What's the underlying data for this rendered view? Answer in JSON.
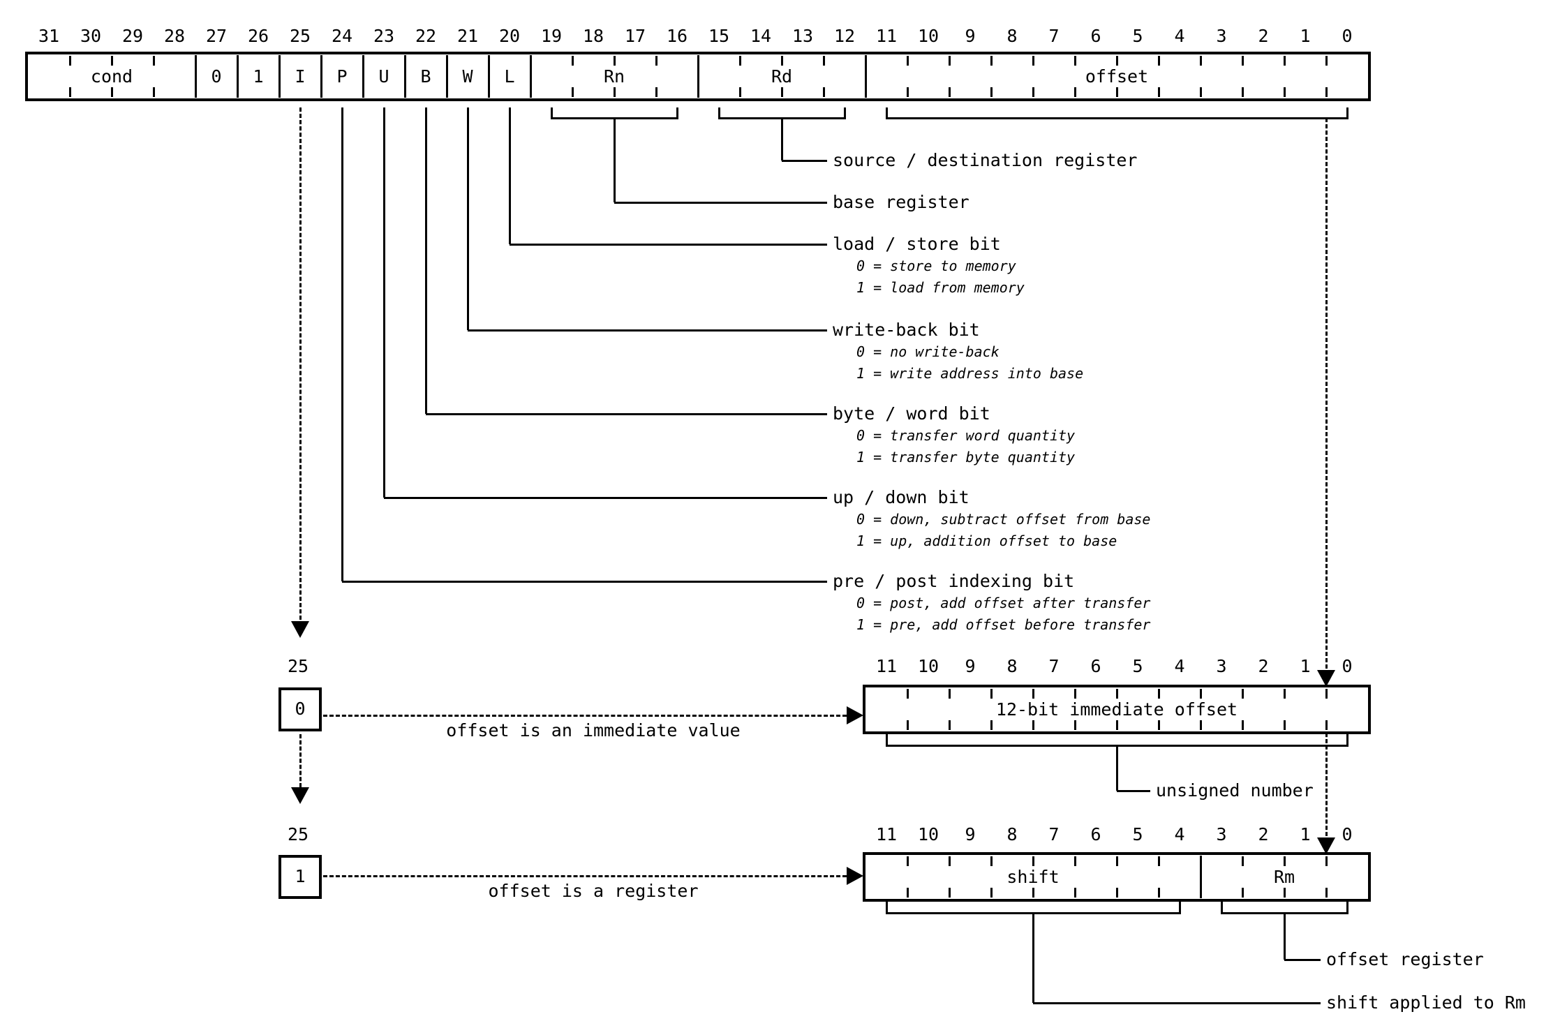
{
  "colors": {
    "ink": "#000000",
    "background": "#ffffff"
  },
  "diagram": {
    "top_register": {
      "bit_labels": [
        "31",
        "30",
        "29",
        "28",
        "27",
        "26",
        "25",
        "24",
        "23",
        "22",
        "21",
        "20",
        "19",
        "18",
        "17",
        "16",
        "15",
        "14",
        "13",
        "12",
        "11",
        "10",
        "9",
        "8",
        "7",
        "6",
        "5",
        "4",
        "3",
        "2",
        "1",
        "0"
      ],
      "fields": [
        {
          "name": "cond",
          "label": "cond",
          "msb": 31,
          "lsb": 28
        },
        {
          "name": "const-0",
          "label": "0",
          "msb": 27,
          "lsb": 27
        },
        {
          "name": "const-1",
          "label": "1",
          "msb": 26,
          "lsb": 26
        },
        {
          "name": "i-bit",
          "label": "I",
          "msb": 25,
          "lsb": 25
        },
        {
          "name": "p-bit",
          "label": "P",
          "msb": 24,
          "lsb": 24
        },
        {
          "name": "u-bit",
          "label": "U",
          "msb": 23,
          "lsb": 23
        },
        {
          "name": "b-bit",
          "label": "B",
          "msb": 22,
          "lsb": 22
        },
        {
          "name": "w-bit",
          "label": "W",
          "msb": 21,
          "lsb": 21
        },
        {
          "name": "l-bit",
          "label": "L",
          "msb": 20,
          "lsb": 20
        },
        {
          "name": "rn",
          "label": "Rn",
          "msb": 19,
          "lsb": 16
        },
        {
          "name": "rd",
          "label": "Rd",
          "msb": 15,
          "lsb": 12
        },
        {
          "name": "offset",
          "label": "offset",
          "msb": 11,
          "lsb": 0
        }
      ]
    },
    "annotations": [
      {
        "id": "rd",
        "label": "source / destination register",
        "sub": []
      },
      {
        "id": "rn",
        "label": "base register",
        "sub": []
      },
      {
        "id": "l-bit",
        "label": "load / store bit",
        "sub": [
          "0 = store to memory",
          "1 = load from memory"
        ]
      },
      {
        "id": "w-bit",
        "label": "write-back bit",
        "sub": [
          "0 = no write-back",
          "1 = write address into base"
        ]
      },
      {
        "id": "b-bit",
        "label": "byte / word bit",
        "sub": [
          "0 = transfer word quantity",
          "1 = transfer byte quantity"
        ]
      },
      {
        "id": "u-bit",
        "label": "up / down bit",
        "sub": [
          "0 = down, subtract offset from base",
          "1 = up, addition offset to base"
        ]
      },
      {
        "id": "p-bit",
        "label": "pre / post indexing bit",
        "sub": [
          "0 = post, add offset after transfer",
          "1 = pre, add offset before transfer"
        ]
      }
    ],
    "immediate_branch": {
      "bit_no": "25",
      "box_value": "0",
      "caption": "offset is an immediate value",
      "register": {
        "bit_labels": [
          "11",
          "10",
          "9",
          "8",
          "7",
          "6",
          "5",
          "4",
          "3",
          "2",
          "1",
          "0"
        ],
        "fields": [
          {
            "name": "imm12",
            "label": "12-bit immediate offset",
            "msb": 11,
            "lsb": 0
          }
        ]
      },
      "brace_label": "unsigned number"
    },
    "register_branch": {
      "bit_no": "25",
      "box_value": "1",
      "caption": "offset is a register",
      "register": {
        "bit_labels": [
          "11",
          "10",
          "9",
          "8",
          "7",
          "6",
          "5",
          "4",
          "3",
          "2",
          "1",
          "0"
        ],
        "fields": [
          {
            "name": "shift",
            "label": "shift",
            "msb": 11,
            "lsb": 4
          },
          {
            "name": "rm",
            "label": "Rm",
            "msb": 3,
            "lsb": 0
          }
        ]
      },
      "brace_labels": {
        "rm": "offset register",
        "shift": "shift applied to Rm"
      }
    }
  }
}
